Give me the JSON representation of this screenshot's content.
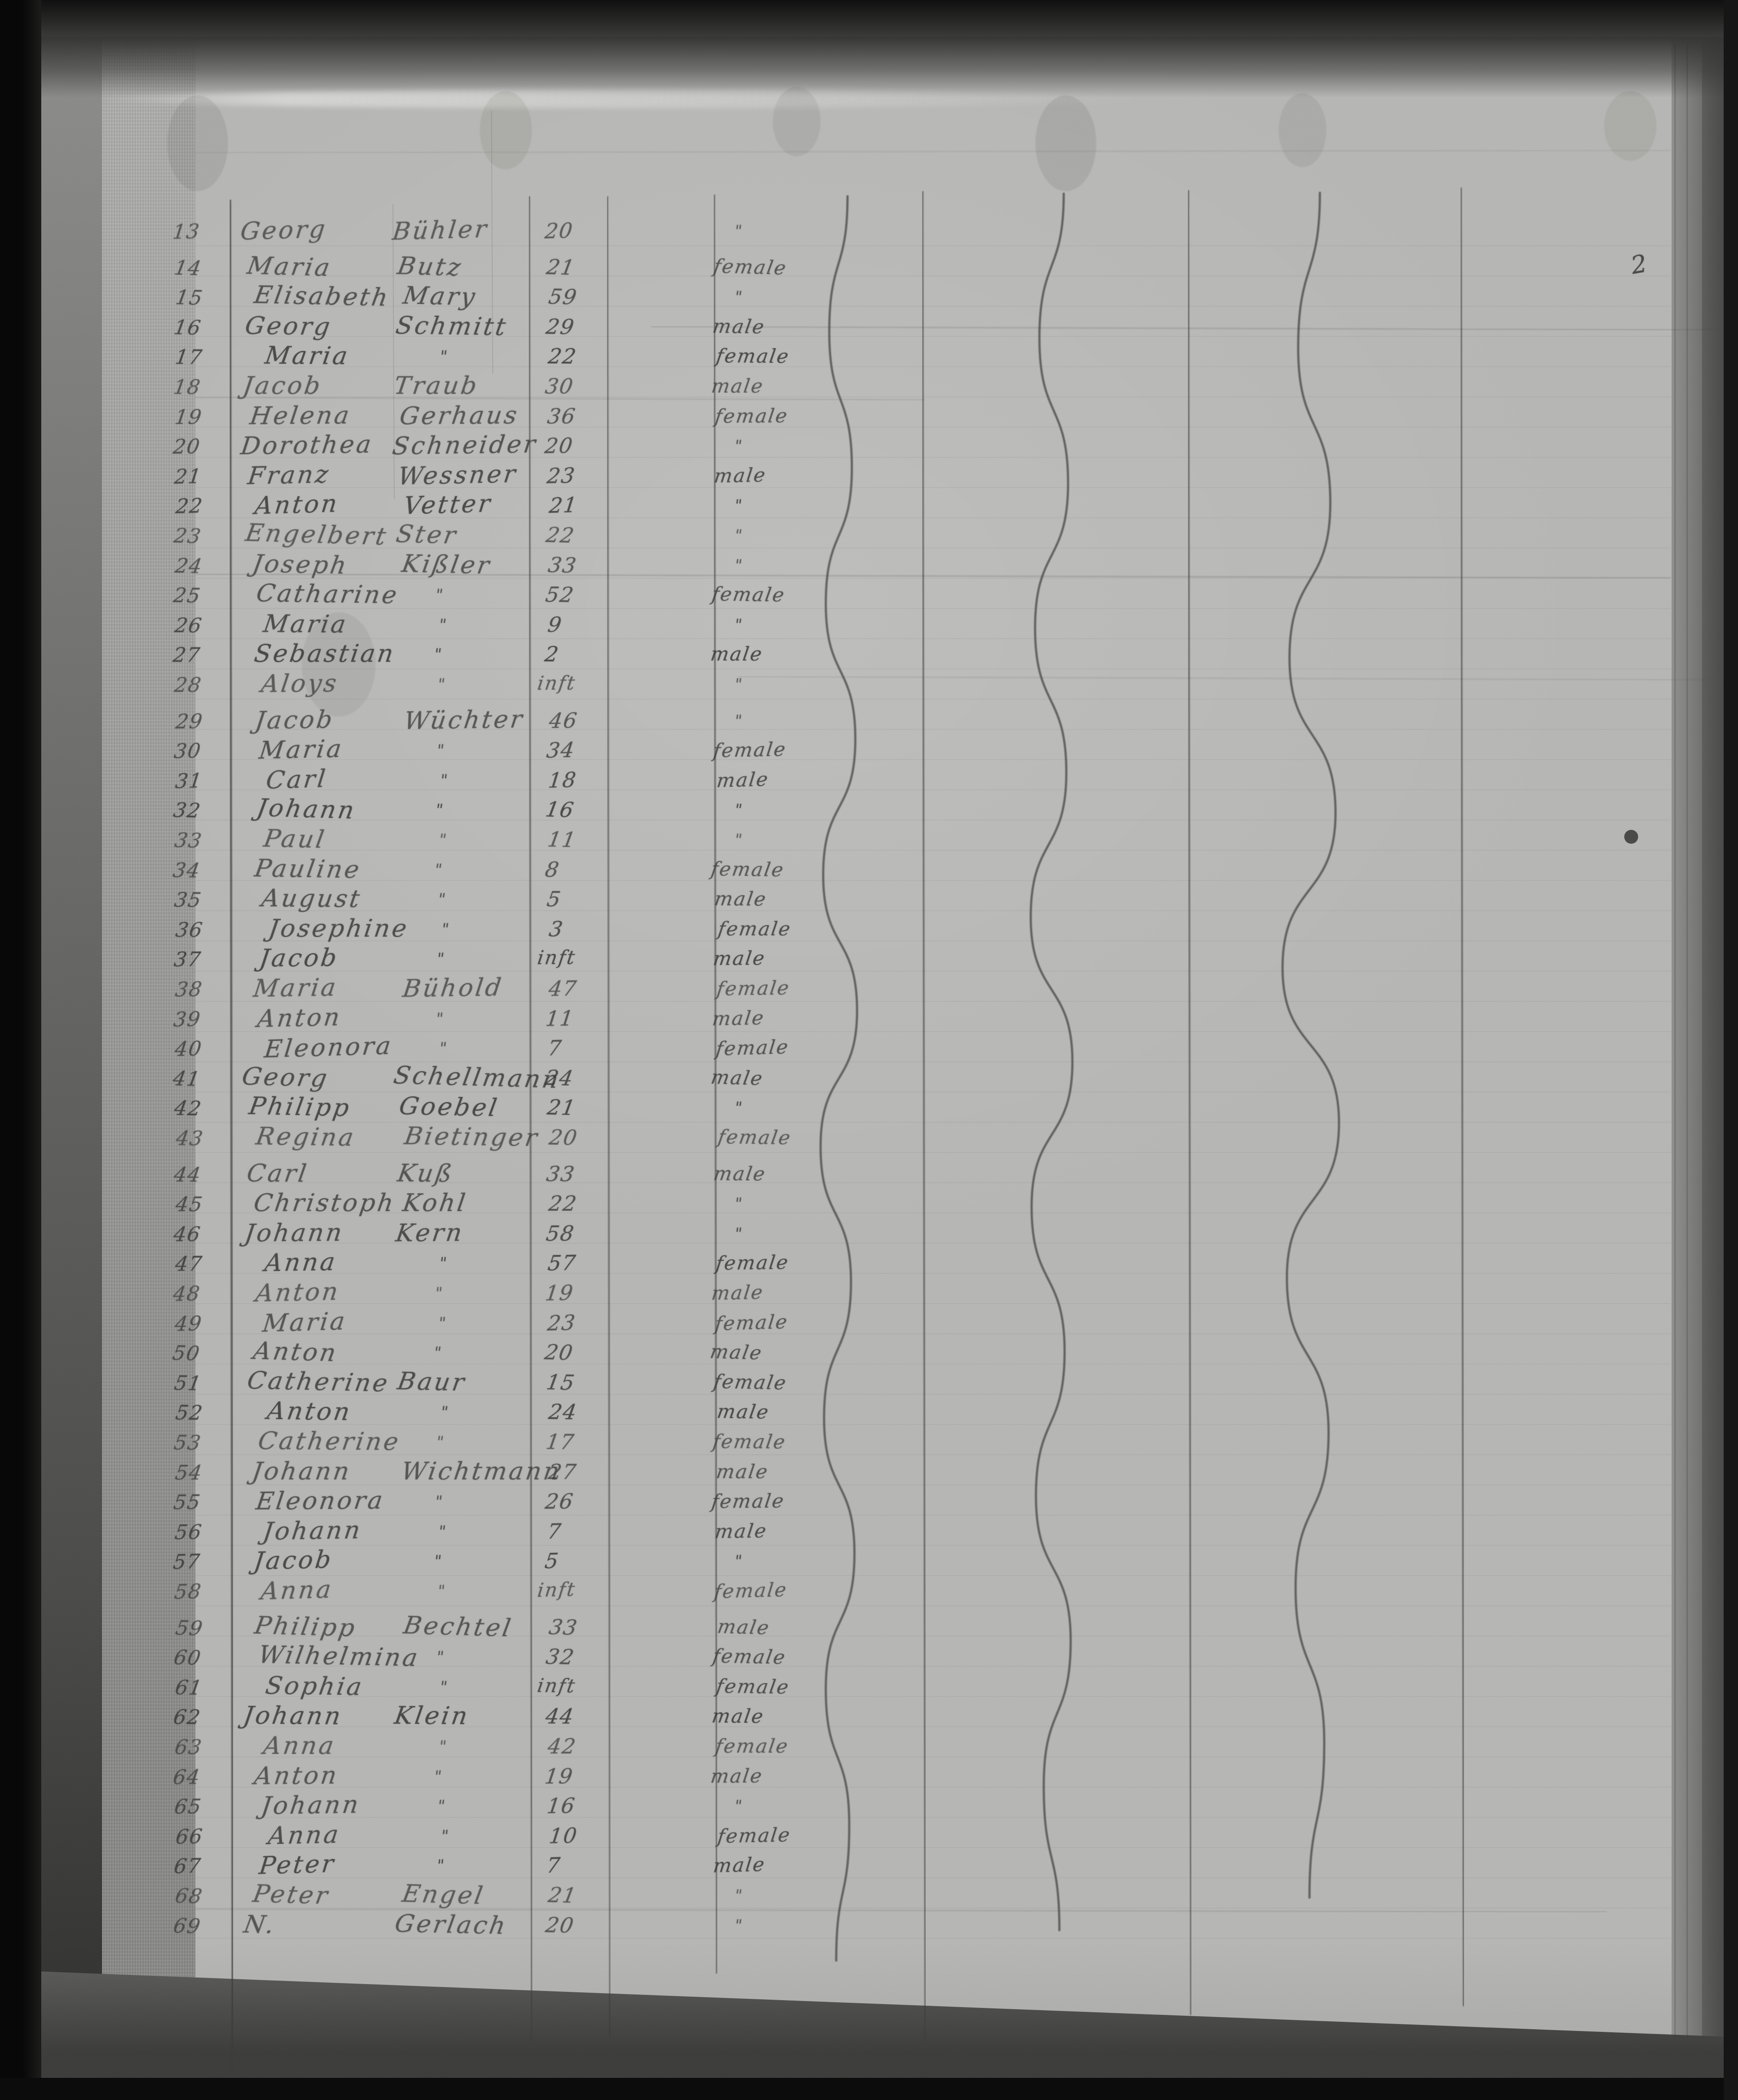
{
  "page": {
    "number_label": "2",
    "age_infant_label": "inft",
    "ditto_mark": "\""
  },
  "list": {
    "rows": [
      {
        "no": "13",
        "first": "Georg",
        "last": "Bühler",
        "age": "20",
        "sex": "\""
      },
      {
        "no": "14",
        "first": "Maria",
        "last": "Butz",
        "age": "21",
        "sex": "female"
      },
      {
        "no": "15",
        "first": "Elisabeth",
        "last": "Mary",
        "age": "59",
        "sex": "\""
      },
      {
        "no": "16",
        "first": "Georg",
        "last": "Schmitt",
        "age": "29",
        "sex": "male"
      },
      {
        "no": "17",
        "first": "Maria",
        "last": "\"",
        "age": "22",
        "sex": "female"
      },
      {
        "no": "18",
        "first": "Jacob",
        "last": "Traub",
        "age": "30",
        "sex": "male"
      },
      {
        "no": "19",
        "first": "Helena",
        "last": "Gerhaus",
        "age": "36",
        "sex": "female"
      },
      {
        "no": "20",
        "first": "Dorothea",
        "last": "Schneider",
        "age": "20",
        "sex": "\""
      },
      {
        "no": "21",
        "first": "Franz",
        "last": "Wessner",
        "age": "23",
        "sex": "male"
      },
      {
        "no": "22",
        "first": "Anton",
        "last": "Vetter",
        "age": "21",
        "sex": "\""
      },
      {
        "no": "23",
        "first": "Engelbert",
        "last": "Ster",
        "age": "22",
        "sex": "\""
      },
      {
        "no": "24",
        "first": "Joseph",
        "last": "Kißler",
        "age": "33",
        "sex": "\""
      },
      {
        "no": "25",
        "first": "Catharine",
        "last": "\"",
        "age": "52",
        "sex": "female"
      },
      {
        "no": "26",
        "first": "Maria",
        "last": "\"",
        "age": "9",
        "sex": "\""
      },
      {
        "no": "27",
        "first": "Sebastian",
        "last": "\"",
        "age": "2",
        "sex": "male"
      },
      {
        "no": "28",
        "first": "Aloys",
        "last": "\"",
        "age": "inft",
        "sex": "\""
      },
      {
        "no": "29",
        "first": "Jacob",
        "last": "Wüchter",
        "age": "46",
        "sex": "\""
      },
      {
        "no": "30",
        "first": "Maria",
        "last": "\"",
        "age": "34",
        "sex": "female"
      },
      {
        "no": "31",
        "first": "Carl",
        "last": "\"",
        "age": "18",
        "sex": "male"
      },
      {
        "no": "32",
        "first": "Johann",
        "last": "\"",
        "age": "16",
        "sex": "\""
      },
      {
        "no": "33",
        "first": "Paul",
        "last": "\"",
        "age": "11",
        "sex": "\""
      },
      {
        "no": "34",
        "first": "Pauline",
        "last": "\"",
        "age": "8",
        "sex": "female"
      },
      {
        "no": "35",
        "first": "August",
        "last": "\"",
        "age": "5",
        "sex": "male"
      },
      {
        "no": "36",
        "first": "Josephine",
        "last": "\"",
        "age": "3",
        "sex": "female"
      },
      {
        "no": "37",
        "first": "Jacob",
        "last": "\"",
        "age": "inft",
        "sex": "male"
      },
      {
        "no": "38",
        "first": "Maria",
        "last": "Bühold",
        "age": "47",
        "sex": "female"
      },
      {
        "no": "39",
        "first": "Anton",
        "last": "\"",
        "age": "11",
        "sex": "male"
      },
      {
        "no": "40",
        "first": "Eleonora",
        "last": "\"",
        "age": "7",
        "sex": "female"
      },
      {
        "no": "41",
        "first": "Georg",
        "last": "Schellmann",
        "age": "24",
        "sex": "male"
      },
      {
        "no": "42",
        "first": "Philipp",
        "last": "Goebel",
        "age": "21",
        "sex": "\""
      },
      {
        "no": "43",
        "first": "Regina",
        "last": "Bietinger",
        "age": "20",
        "sex": "female"
      },
      {
        "no": "44",
        "first": "Carl",
        "last": "Kuß",
        "age": "33",
        "sex": "male"
      },
      {
        "no": "45",
        "first": "Christoph",
        "last": "Kohl",
        "age": "22",
        "sex": "\""
      },
      {
        "no": "46",
        "first": "Johann",
        "last": "Kern",
        "age": "58",
        "sex": "\""
      },
      {
        "no": "47",
        "first": "Anna",
        "last": "\"",
        "age": "57",
        "sex": "female"
      },
      {
        "no": "48",
        "first": "Anton",
        "last": "\"",
        "age": "19",
        "sex": "male"
      },
      {
        "no": "49",
        "first": "Maria",
        "last": "\"",
        "age": "23",
        "sex": "female"
      },
      {
        "no": "50",
        "first": "Anton",
        "last": "\"",
        "age": "20",
        "sex": "male"
      },
      {
        "no": "51",
        "first": "Catherine",
        "last": "Baur",
        "age": "15",
        "sex": "female"
      },
      {
        "no": "52",
        "first": "Anton",
        "last": "\"",
        "age": "24",
        "sex": "male"
      },
      {
        "no": "53",
        "first": "Catherine",
        "last": "\"",
        "age": "17",
        "sex": "female"
      },
      {
        "no": "54",
        "first": "Johann",
        "last": "Wichtmann",
        "age": "27",
        "sex": "male"
      },
      {
        "no": "55",
        "first": "Eleonora",
        "last": "\"",
        "age": "26",
        "sex": "female"
      },
      {
        "no": "56",
        "first": "Johann",
        "last": "\"",
        "age": "7",
        "sex": "male"
      },
      {
        "no": "57",
        "first": "Jacob",
        "last": "\"",
        "age": "5",
        "sex": "\""
      },
      {
        "no": "58",
        "first": "Anna",
        "last": "\"",
        "age": "inft",
        "sex": "female"
      },
      {
        "no": "59",
        "first": "Philipp",
        "last": "Bechtel",
        "age": "33",
        "sex": "male"
      },
      {
        "no": "60",
        "first": "Wilhelmina",
        "last": "\"",
        "age": "32",
        "sex": "female"
      },
      {
        "no": "61",
        "first": "Sophia",
        "last": "\"",
        "age": "inft",
        "sex": "female"
      },
      {
        "no": "62",
        "first": "Johann",
        "last": "Klein",
        "age": "44",
        "sex": "male"
      },
      {
        "no": "63",
        "first": "Anna",
        "last": "\"",
        "age": "42",
        "sex": "female"
      },
      {
        "no": "64",
        "first": "Anton",
        "last": "\"",
        "age": "19",
        "sex": "male"
      },
      {
        "no": "65",
        "first": "Johann",
        "last": "\"",
        "age": "16",
        "sex": "\""
      },
      {
        "no": "66",
        "first": "Anna",
        "last": "\"",
        "age": "10",
        "sex": "female"
      },
      {
        "no": "67",
        "first": "Peter",
        "last": "\"",
        "age": "7",
        "sex": "male"
      },
      {
        "no": "68",
        "first": "Peter",
        "last": "Engel",
        "age": "21",
        "sex": "\""
      },
      {
        "no": "69",
        "first": "N.",
        "last": "Gerlach",
        "age": "20",
        "sex": "\""
      }
    ]
  },
  "colors": {
    "paper": "#b6b6b4",
    "ink": "#343432",
    "rule_line": "#53534f",
    "frame_black": "#0b0b0b"
  }
}
